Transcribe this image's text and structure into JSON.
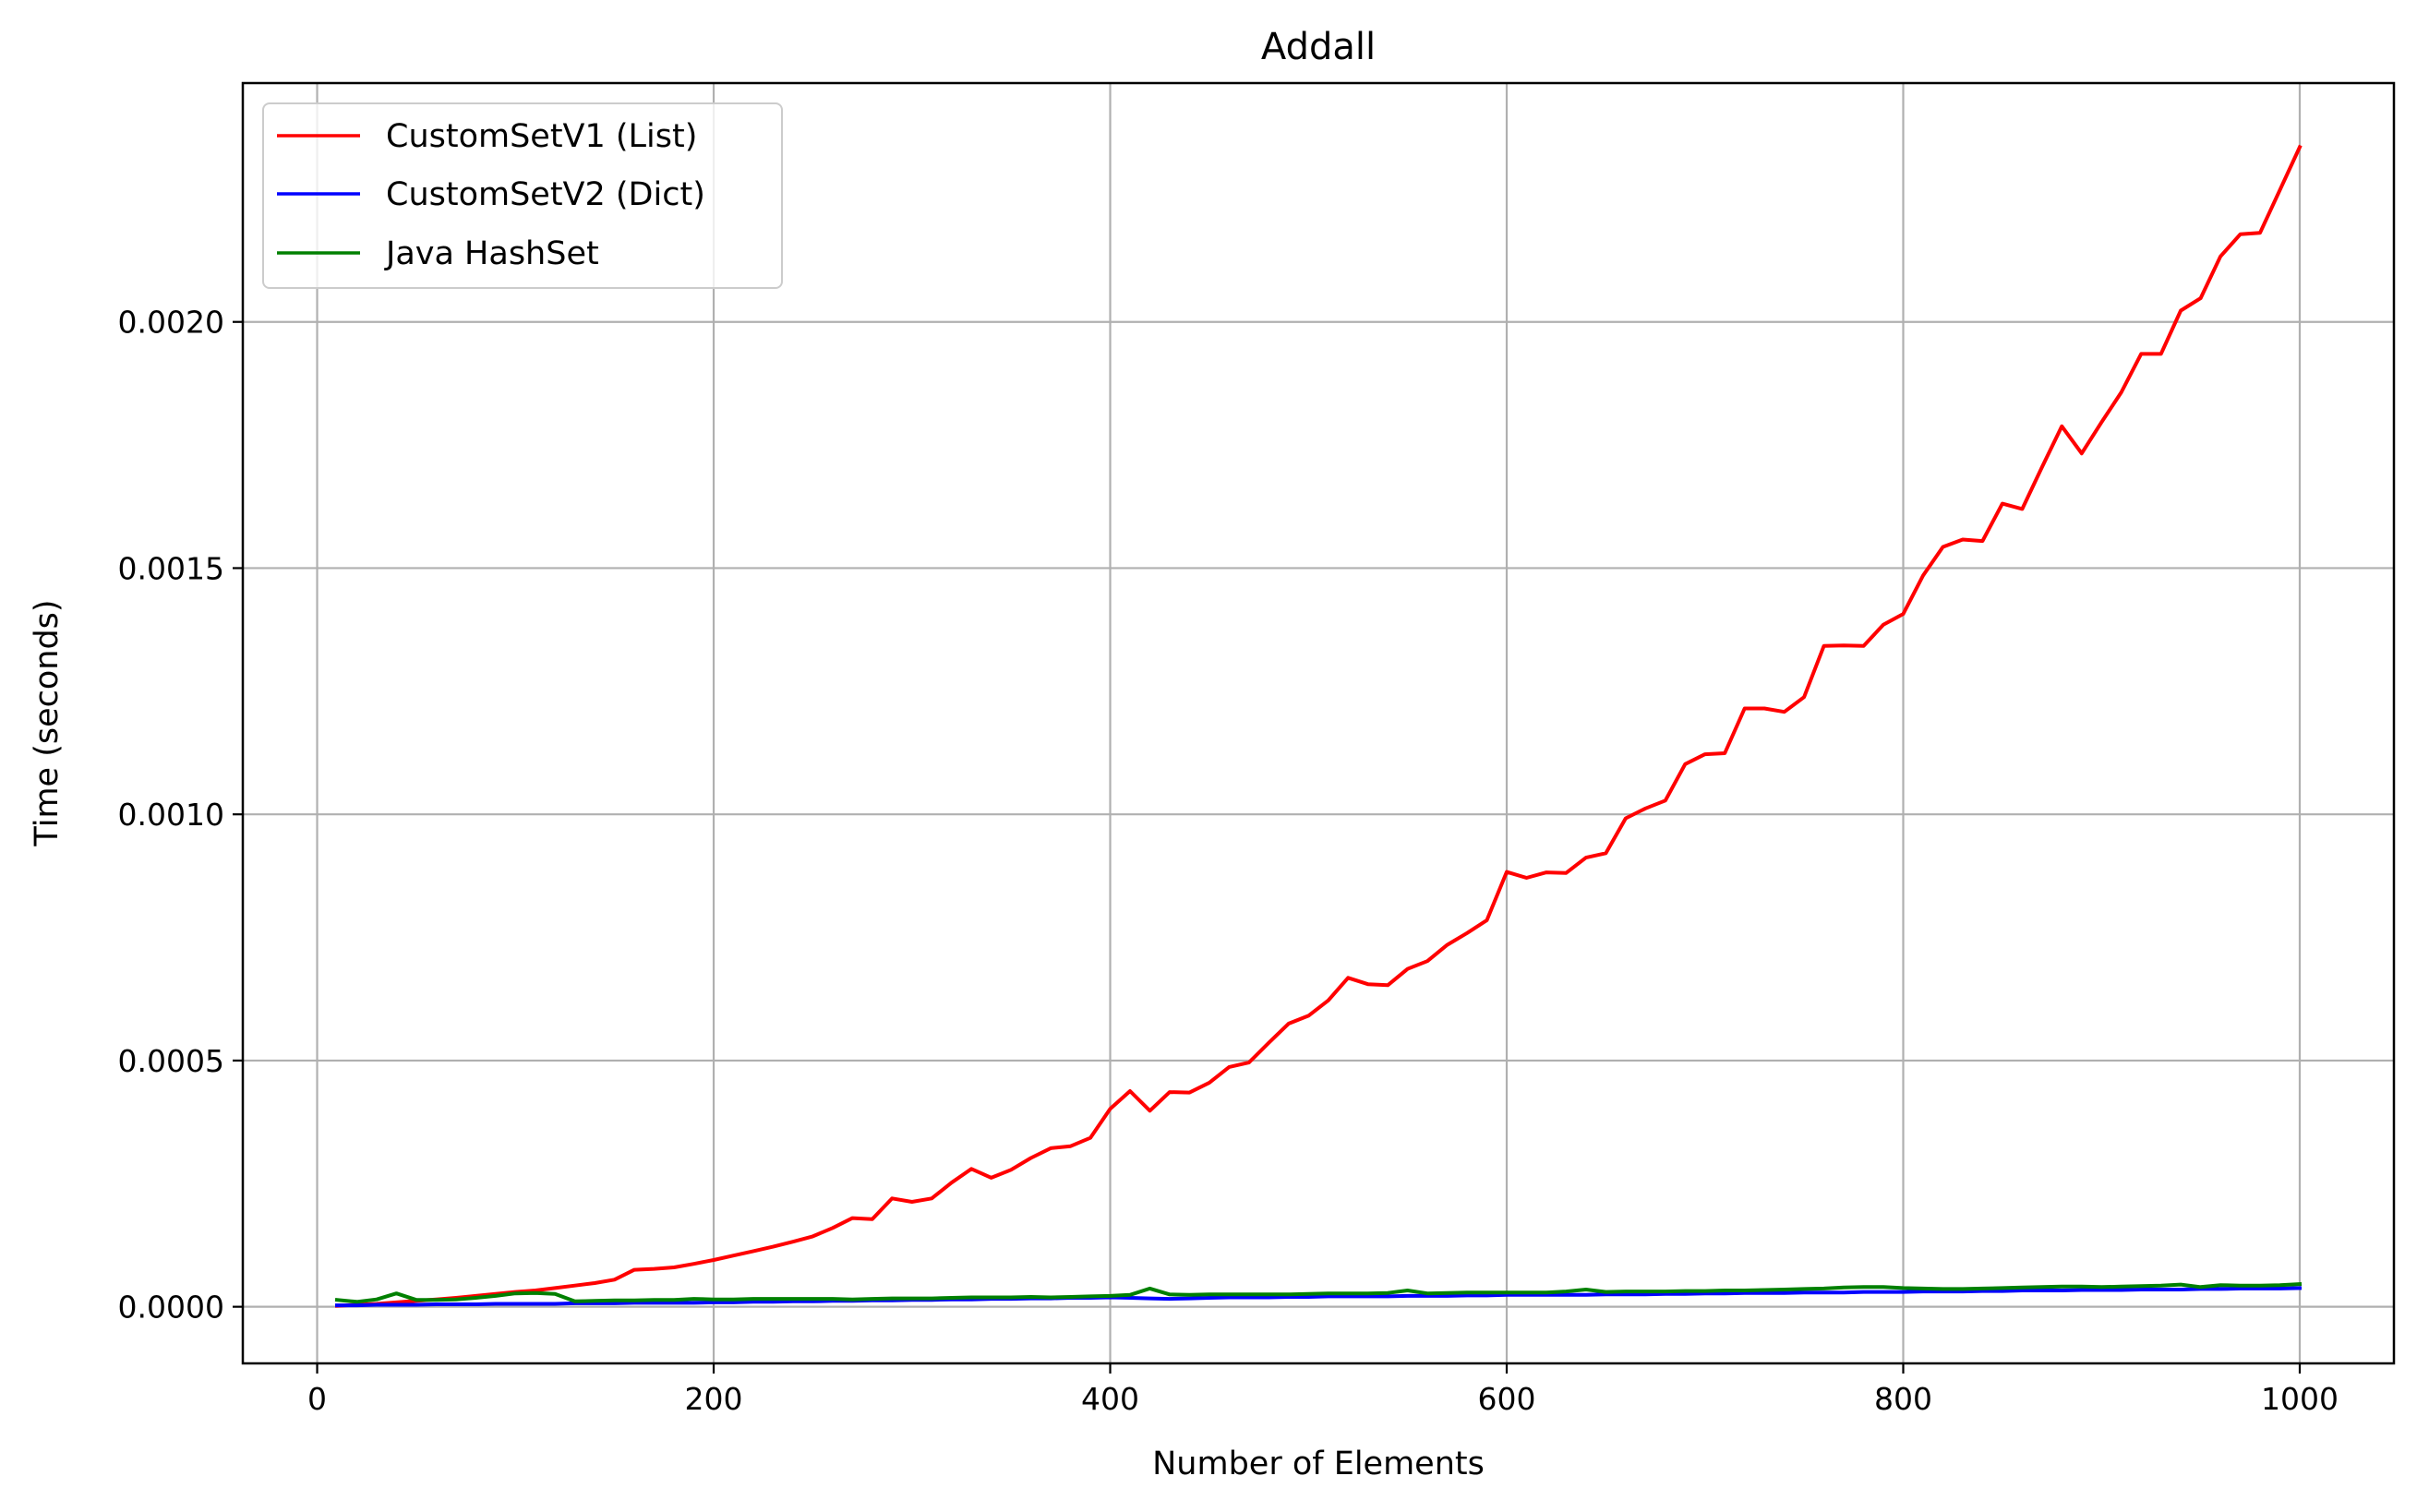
{
  "chart_data": {
    "type": "line",
    "title": "Addall",
    "xlabel": "Number of Elements",
    "ylabel": "Time (seconds)",
    "xlim": [
      -37.5,
      1047.5
    ],
    "ylim": [
      -0.000115,
      0.002485
    ],
    "xticks": [
      0,
      200,
      400,
      600,
      800,
      1000
    ],
    "xtick_labels": [
      "0",
      "200",
      "400",
      "600",
      "800",
      "1000"
    ],
    "yticks": [
      0.0,
      0.0005,
      0.001,
      0.0015,
      0.002
    ],
    "ytick_labels": [
      "0.0000",
      "0.0005",
      "0.0010",
      "0.0015",
      "0.0020"
    ],
    "grid": true,
    "legend_position": "top-left",
    "x": [
      10,
      20,
      30,
      40,
      50,
      60,
      70,
      80,
      90,
      100,
      110,
      120,
      130,
      140,
      150,
      160,
      170,
      180,
      190,
      200,
      210,
      220,
      230,
      240,
      250,
      260,
      270,
      280,
      290,
      300,
      310,
      320,
      330,
      340,
      350,
      360,
      370,
      380,
      390,
      400,
      410,
      420,
      430,
      440,
      450,
      460,
      470,
      480,
      490,
      500,
      510,
      520,
      530,
      540,
      550,
      560,
      570,
      580,
      590,
      600,
      610,
      620,
      630,
      640,
      650,
      660,
      670,
      680,
      690,
      700,
      710,
      720,
      730,
      740,
      750,
      760,
      770,
      780,
      790,
      800,
      810,
      820,
      830,
      840,
      850,
      860,
      870,
      880,
      890,
      900,
      910,
      920,
      930,
      940,
      950,
      960,
      970,
      980,
      990,
      1000
    ],
    "series": [
      {
        "name": "CustomSetV1 (List)",
        "color": "#ff0000",
        "values": [
          2e-06,
          4e-06,
          6e-06,
          9e-06,
          1.2e-05,
          1.5e-05,
          1.8e-05,
          2.2e-05,
          2.6e-05,
          3e-05,
          3.3e-05,
          3.8e-05,
          4.3e-05,
          4.8e-05,
          5.5e-05,
          7.5e-05,
          7.7e-05,
          8e-05,
          8.7e-05,
          9.5e-05,
          0.000104,
          0.000113,
          0.000122,
          0.000132,
          0.000143,
          0.00016,
          0.00018,
          0.000178,
          0.00022,
          0.000213,
          0.00022,
          0.000252,
          0.00028,
          0.000262,
          0.000278,
          0.000302,
          0.000322,
          0.000326,
          0.000343,
          0.000402,
          0.000438,
          0.000398,
          0.000436,
          0.000435,
          0.000455,
          0.000487,
          0.000496,
          0.000536,
          0.000575,
          0.000591,
          0.000622,
          0.000668,
          0.000655,
          0.000653,
          0.000686,
          0.000702,
          0.000735,
          0.000759,
          0.000785,
          0.000883,
          0.000871,
          0.000882,
          0.000881,
          0.000912,
          0.000921,
          0.000992,
          0.001012,
          0.001028,
          0.001102,
          0.001122,
          0.001124,
          0.001215,
          0.001215,
          0.001208,
          0.001238,
          0.001342,
          0.001343,
          0.001342,
          0.001385,
          0.001407,
          0.001485,
          0.001543,
          0.001558,
          0.001555,
          0.001631,
          0.00162,
          0.001705,
          0.001788,
          0.001733,
          0.001796,
          0.001857,
          0.001935,
          0.001935,
          0.002023,
          0.002048,
          0.002133,
          0.002178,
          0.002181,
          0.002268,
          0.002355
        ]
      },
      {
        "name": "CustomSetV2 (Dict)",
        "color": "#0000ff",
        "values": [
          3e-06,
          3e-06,
          4e-06,
          4e-06,
          4e-06,
          5e-06,
          5e-06,
          5e-06,
          6e-06,
          6e-06,
          6e-06,
          6e-06,
          7e-06,
          7e-06,
          7e-06,
          8e-06,
          8e-06,
          8e-06,
          8e-06,
          9e-06,
          9e-06,
          1e-05,
          1e-05,
          1.1e-05,
          1.1e-05,
          1.2e-05,
          1.2e-05,
          1.3e-05,
          1.3e-05,
          1.4e-05,
          1.4e-05,
          1.5e-05,
          1.5e-05,
          1.6e-05,
          1.6e-05,
          1.7e-05,
          1.7e-05,
          1.8e-05,
          1.8e-05,
          1.9e-05,
          1.8e-05,
          1.7e-05,
          1.6e-05,
          1.7e-05,
          1.8e-05,
          1.9e-05,
          1.9e-05,
          1.9e-05,
          2e-05,
          2e-05,
          2.1e-05,
          2.1e-05,
          2.1e-05,
          2.1e-05,
          2.2e-05,
          2.2e-05,
          2.2e-05,
          2.3e-05,
          2.3e-05,
          2.4e-05,
          2.4e-05,
          2.4e-05,
          2.4e-05,
          2.4e-05,
          2.5e-05,
          2.5e-05,
          2.5e-05,
          2.6e-05,
          2.6e-05,
          2.7e-05,
          2.7e-05,
          2.8e-05,
          2.8e-05,
          2.8e-05,
          2.9e-05,
          2.9e-05,
          2.9e-05,
          3e-05,
          3e-05,
          3e-05,
          3.1e-05,
          3.1e-05,
          3.1e-05,
          3.2e-05,
          3.2e-05,
          3.3e-05,
          3.3e-05,
          3.3e-05,
          3.4e-05,
          3.4e-05,
          3.4e-05,
          3.5e-05,
          3.5e-05,
          3.5e-05,
          3.6e-05,
          3.6e-05,
          3.7e-05,
          3.7e-05,
          3.7e-05,
          3.8e-05
        ]
      },
      {
        "name": "Java HashSet",
        "color": "#008000",
        "values": [
          1.4e-05,
          1e-05,
          1.5e-05,
          2.7e-05,
          1.4e-05,
          1.4e-05,
          1.5e-05,
          1.8e-05,
          2.2e-05,
          2.7e-05,
          2.8e-05,
          2.6e-05,
          1.1e-05,
          1.2e-05,
          1.3e-05,
          1.3e-05,
          1.4e-05,
          1.4e-05,
          1.6e-05,
          1.5e-05,
          1.5e-05,
          1.6e-05,
          1.6e-05,
          1.6e-05,
          1.6e-05,
          1.6e-05,
          1.5e-05,
          1.6e-05,
          1.7e-05,
          1.7e-05,
          1.7e-05,
          1.8e-05,
          1.9e-05,
          1.9e-05,
          1.9e-05,
          2e-05,
          1.9e-05,
          2e-05,
          2.1e-05,
          2.2e-05,
          2.4e-05,
          3.7e-05,
          2.5e-05,
          2.4e-05,
          2.5e-05,
          2.5e-05,
          2.5e-05,
          2.5e-05,
          2.5e-05,
          2.6e-05,
          2.7e-05,
          2.7e-05,
          2.7e-05,
          2.8e-05,
          3.3e-05,
          2.7e-05,
          2.8e-05,
          2.9e-05,
          2.9e-05,
          2.9e-05,
          2.9e-05,
          2.9e-05,
          3.1e-05,
          3.5e-05,
          3e-05,
          3.1e-05,
          3.1e-05,
          3.1e-05,
          3.2e-05,
          3.2e-05,
          3.3e-05,
          3.3e-05,
          3.4e-05,
          3.5e-05,
          3.6e-05,
          3.7e-05,
          3.9e-05,
          4e-05,
          4e-05,
          3.8e-05,
          3.7e-05,
          3.6e-05,
          3.6e-05,
          3.7e-05,
          3.8e-05,
          3.9e-05,
          4e-05,
          4.1e-05,
          4.1e-05,
          4e-05,
          4.1e-05,
          4.2e-05,
          4.3e-05,
          4.5e-05,
          4e-05,
          4.4e-05,
          4.3e-05,
          4.3e-05,
          4.4e-05,
          4.6e-05
        ]
      }
    ]
  }
}
